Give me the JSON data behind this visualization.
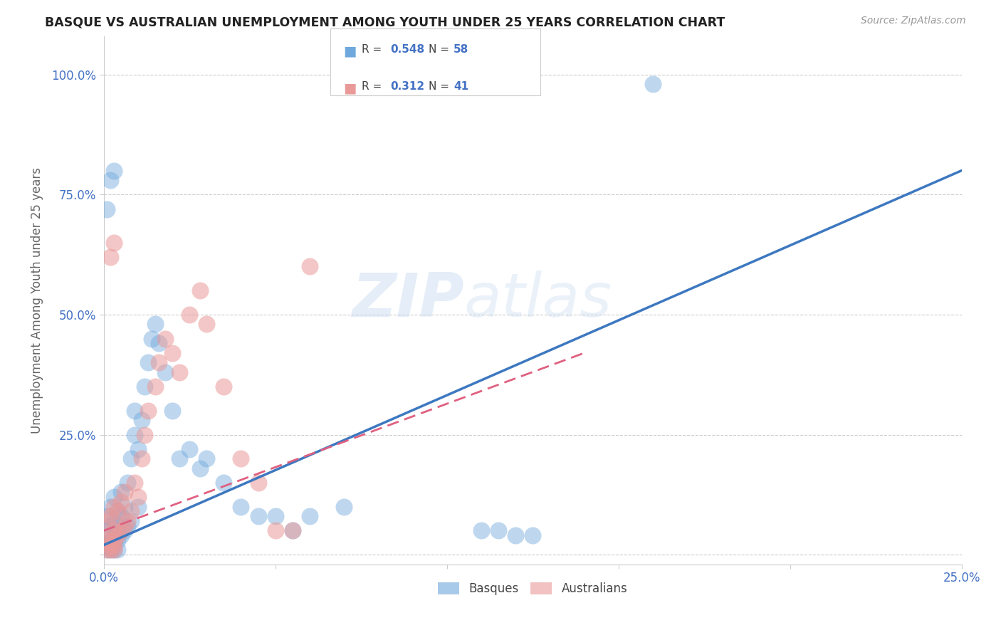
{
  "title": "BASQUE VS AUSTRALIAN UNEMPLOYMENT AMONG YOUTH UNDER 25 YEARS CORRELATION CHART",
  "source": "Source: ZipAtlas.com",
  "ylabel": "Unemployment Among Youth under 25 years",
  "xlim": [
    0.0,
    0.25
  ],
  "ylim": [
    -0.02,
    1.08
  ],
  "xticks": [
    0.0,
    0.05,
    0.1,
    0.15,
    0.2,
    0.25
  ],
  "yticks": [
    0.0,
    0.25,
    0.5,
    0.75,
    1.0
  ],
  "blue_R": 0.548,
  "blue_N": 58,
  "pink_R": 0.312,
  "pink_N": 41,
  "blue_color": "#6fa8dc",
  "pink_color": "#ea9999",
  "blue_line_color": "#3d78c0",
  "pink_line_color": "#e06080",
  "watermark": "ZIPatlas",
  "legend_basques": "Basques",
  "legend_australians": "Australians",
  "basque_x": [
    0.001,
    0.001,
    0.001,
    0.002,
    0.002,
    0.002,
    0.003,
    0.003,
    0.003,
    0.004,
    0.004,
    0.004,
    0.005,
    0.005,
    0.005,
    0.006,
    0.006,
    0.007,
    0.007,
    0.008,
    0.008,
    0.009,
    0.009,
    0.01,
    0.01,
    0.011,
    0.012,
    0.013,
    0.014,
    0.015,
    0.016,
    0.018,
    0.02,
    0.022,
    0.025,
    0.028,
    0.03,
    0.035,
    0.04,
    0.045,
    0.05,
    0.055,
    0.06,
    0.07,
    0.001,
    0.002,
    0.003,
    0.004,
    0.12,
    0.125,
    0.001,
    0.002,
    0.003,
    0.11,
    0.115,
    0.001,
    0.002,
    0.16
  ],
  "basque_y": [
    0.02,
    0.05,
    0.08,
    0.03,
    0.06,
    0.1,
    0.04,
    0.07,
    0.12,
    0.03,
    0.06,
    0.09,
    0.04,
    0.08,
    0.13,
    0.05,
    0.1,
    0.06,
    0.15,
    0.07,
    0.2,
    0.25,
    0.3,
    0.1,
    0.22,
    0.28,
    0.35,
    0.4,
    0.45,
    0.48,
    0.44,
    0.38,
    0.3,
    0.2,
    0.22,
    0.18,
    0.2,
    0.15,
    0.1,
    0.08,
    0.08,
    0.05,
    0.08,
    0.1,
    0.01,
    0.01,
    0.01,
    0.01,
    0.04,
    0.04,
    0.72,
    0.78,
    0.8,
    0.05,
    0.05,
    0.02,
    0.02,
    0.98
  ],
  "australian_x": [
    0.001,
    0.001,
    0.002,
    0.002,
    0.003,
    0.003,
    0.004,
    0.004,
    0.005,
    0.005,
    0.006,
    0.006,
    0.007,
    0.008,
    0.009,
    0.01,
    0.011,
    0.012,
    0.013,
    0.015,
    0.016,
    0.018,
    0.02,
    0.022,
    0.025,
    0.028,
    0.03,
    0.035,
    0.04,
    0.045,
    0.001,
    0.002,
    0.003,
    0.05,
    0.055,
    0.06,
    0.002,
    0.003,
    0.002,
    0.003,
    0.003
  ],
  "australian_y": [
    0.03,
    0.07,
    0.04,
    0.08,
    0.05,
    0.1,
    0.04,
    0.09,
    0.05,
    0.11,
    0.06,
    0.13,
    0.07,
    0.09,
    0.15,
    0.12,
    0.2,
    0.25,
    0.3,
    0.35,
    0.4,
    0.45,
    0.42,
    0.38,
    0.5,
    0.55,
    0.48,
    0.35,
    0.2,
    0.15,
    0.01,
    0.01,
    0.01,
    0.05,
    0.05,
    0.6,
    0.62,
    0.65,
    0.02,
    0.02,
    0.03
  ],
  "blue_line_x": [
    0.0,
    0.25
  ],
  "blue_line_y": [
    0.02,
    0.8
  ],
  "pink_line_x": [
    0.0,
    0.14
  ],
  "pink_line_y": [
    0.05,
    0.42
  ]
}
